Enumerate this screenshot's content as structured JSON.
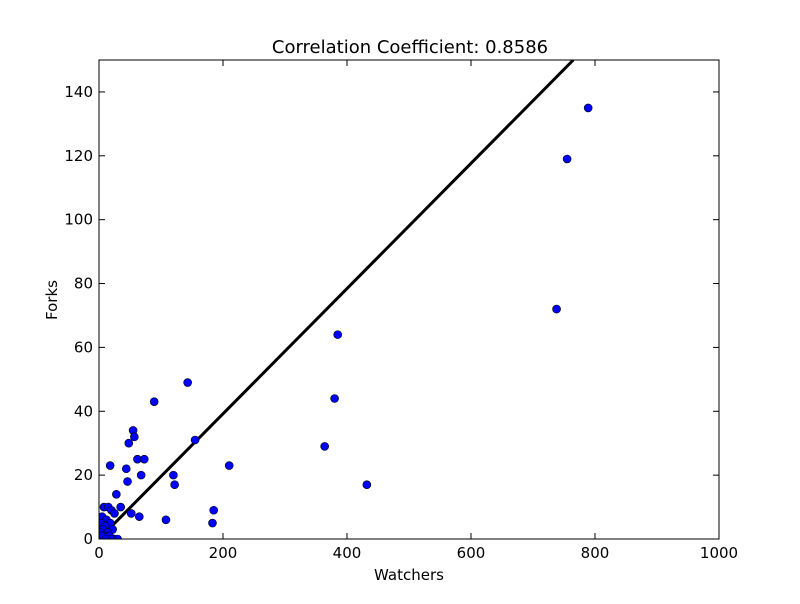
{
  "chart_data": {
    "type": "scatter",
    "title": "Correlation Coefficient: 0.8586",
    "xlabel": "Watchers",
    "ylabel": "Forks",
    "xlim": [
      0,
      1000
    ],
    "ylim": [
      0,
      150
    ],
    "xticks": [
      0,
      200,
      400,
      600,
      800,
      1000
    ],
    "yticks": [
      0,
      20,
      40,
      60,
      80,
      100,
      120,
      140
    ],
    "grid": false,
    "legend": "none",
    "marker_color": "#0000ff",
    "line_color": "#000000",
    "regression_line": {
      "x": [
        0,
        765
      ],
      "y": [
        0,
        150
      ]
    },
    "series": [
      {
        "points": [
          [
            789,
            135
          ],
          [
            755,
            119
          ],
          [
            738,
            72
          ],
          [
            385,
            64
          ],
          [
            380,
            44
          ],
          [
            364,
            29
          ],
          [
            432,
            17
          ],
          [
            143,
            49
          ],
          [
            89,
            43
          ],
          [
            155,
            31
          ],
          [
            210,
            23
          ],
          [
            55,
            34
          ],
          [
            57,
            32
          ],
          [
            48,
            30
          ],
          [
            18,
            23
          ],
          [
            62,
            25
          ],
          [
            73,
            25
          ],
          [
            44,
            22
          ],
          [
            68,
            20
          ],
          [
            120,
            20
          ],
          [
            46,
            18
          ],
          [
            122,
            17
          ],
          [
            28,
            14
          ],
          [
            185,
            9
          ],
          [
            35,
            10
          ],
          [
            52,
            8
          ],
          [
            65,
            7
          ],
          [
            108,
            6
          ],
          [
            183,
            5
          ],
          [
            8,
            10
          ],
          [
            15,
            10
          ],
          [
            20,
            9
          ],
          [
            25,
            8
          ],
          [
            5,
            7
          ],
          [
            12,
            6
          ],
          [
            3,
            5
          ],
          [
            18,
            5
          ],
          [
            10,
            4
          ],
          [
            22,
            3
          ],
          [
            6,
            3
          ],
          [
            14,
            2
          ],
          [
            2,
            2
          ],
          [
            9,
            1
          ],
          [
            17,
            1
          ],
          [
            25,
            0
          ],
          [
            30,
            0
          ],
          [
            1,
            0
          ],
          [
            4,
            1
          ],
          [
            20,
            0
          ],
          [
            11,
            0
          ]
        ]
      }
    ]
  }
}
